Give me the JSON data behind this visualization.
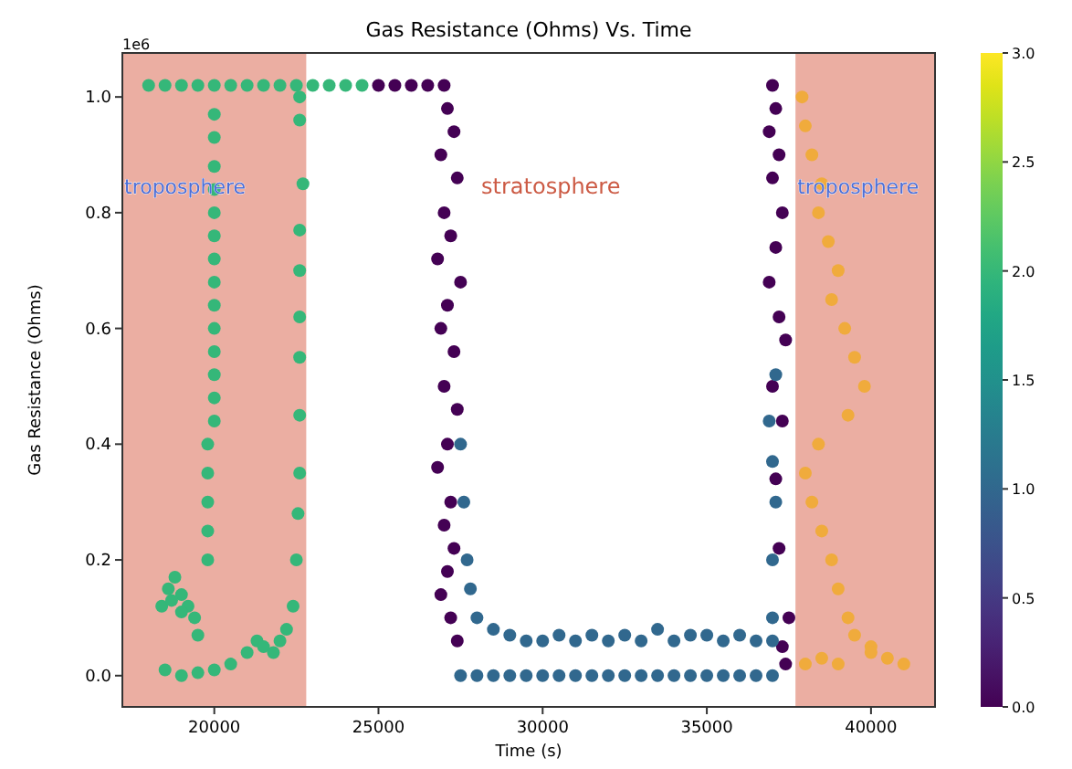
{
  "chart_data": {
    "type": "scatter",
    "title": "Gas Resistance (Ohms) Vs. Time",
    "xlabel": "Time (s)",
    "ylabel": "Gas Resistance (Ohms)",
    "xlim": [
      17200,
      41950
    ],
    "xticks": [
      20000,
      25000,
      30000,
      35000,
      40000
    ],
    "ylim": [
      -0.054,
      1.076
    ],
    "yticks": [
      {
        "value": 0,
        "label": "0.0"
      },
      {
        "value": 0.2,
        "label": "0.2"
      },
      {
        "value": 0.4,
        "label": "0.4"
      },
      {
        "value": 0.6,
        "label": "0.6"
      },
      {
        "value": 0.8,
        "label": "0.8"
      },
      {
        "value": 1.0,
        "label": "1.0"
      }
    ],
    "clim": [
      0,
      3
    ],
    "cticks": [
      {
        "value": 0,
        "label": "0.0"
      },
      {
        "value": 0.5,
        "label": "0.5"
      },
      {
        "value": 1,
        "label": "1.0"
      },
      {
        "value": 1.5,
        "label": "1.5"
      },
      {
        "value": 2,
        "label": "2.0"
      },
      {
        "value": 2.5,
        "label": "2.5"
      },
      {
        "value": 3,
        "label": "3.0"
      }
    ],
    "grid": false,
    "marker": "circle",
    "bands": [
      {
        "axis": "x",
        "from": 17200,
        "to": 22800,
        "label": "troposphere",
        "color": "#e9a598"
      },
      {
        "axis": "x",
        "from": 37700,
        "to": 41950,
        "label": "troposphere",
        "color": "#e9a598"
      }
    ],
    "annotations": [
      "1e6",
      "stratosphere"
    ],
    "series": [
      {
        "x": [
          18000,
          18500,
          19000,
          19500,
          20000,
          20500,
          21000,
          21500,
          22000,
          22500,
          23000,
          23500,
          24000,
          24500,
          20000,
          20000,
          20000,
          20000,
          20000,
          20000,
          20000,
          20000,
          20000,
          20000,
          20000,
          20000,
          20000,
          20000,
          19800,
          19800,
          19800,
          19800,
          19800,
          18400,
          18600,
          18800,
          19000,
          19200,
          19400,
          19500,
          19000,
          18700,
          18500,
          19000,
          19500,
          20000,
          20500,
          21000,
          21300,
          21500,
          21800,
          22000,
          22200,
          22400,
          22500,
          22550,
          22600,
          22600,
          22600,
          22600,
          22600,
          22600,
          22600,
          22600,
          22700
        ],
        "values": [
          1.02,
          1.02,
          1.02,
          1.02,
          1.02,
          1.02,
          1.02,
          1.02,
          1.02,
          1.02,
          1.02,
          1.02,
          1.02,
          1.02,
          0.97,
          0.93,
          0.88,
          0.84,
          0.8,
          0.76,
          0.72,
          0.68,
          0.64,
          0.6,
          0.56,
          0.52,
          0.48,
          0.44,
          0.4,
          0.35,
          0.3,
          0.25,
          0.2,
          0.12,
          0.15,
          0.17,
          0.14,
          0.12,
          0.1,
          0.07,
          0.11,
          0.13,
          0.01,
          0,
          0.005,
          0.01,
          0.02,
          0.04,
          0.06,
          0.05,
          0.04,
          0.06,
          0.08,
          0.12,
          0.2,
          0.28,
          0.35,
          0.45,
          0.55,
          0.62,
          0.7,
          0.77,
          0.96,
          1.0,
          0.85
        ],
        "cvalues": [
          2,
          2,
          2,
          2,
          2,
          2,
          2,
          2,
          2,
          2,
          2,
          2,
          2,
          2,
          2,
          2,
          2,
          2,
          2,
          2,
          2,
          2,
          2,
          2,
          2,
          2,
          2,
          2,
          2,
          2,
          2,
          2,
          2,
          2,
          2,
          2,
          2,
          2,
          2,
          2,
          2,
          2,
          2,
          2,
          2,
          2,
          2,
          2,
          2,
          2,
          2,
          2,
          2,
          2,
          2,
          2,
          2,
          2,
          2,
          2,
          2,
          2,
          2,
          2,
          2
        ]
      },
      {
        "x": [
          25000,
          25500,
          26000,
          26500,
          27000,
          27100,
          27300,
          26900,
          27400,
          27000,
          27200,
          26800,
          27500,
          27100,
          26900,
          27300,
          27000,
          27400,
          27100,
          26800,
          27200,
          27000,
          27300,
          27100,
          26900,
          27200,
          27400,
          37000,
          37100,
          36900,
          37200,
          37000,
          37300,
          37100,
          36900,
          37200,
          37400,
          37000,
          37300,
          37100,
          37200,
          37500,
          37300,
          37400
        ],
        "values": [
          1.02,
          1.02,
          1.02,
          1.02,
          1.02,
          0.98,
          0.94,
          0.9,
          0.86,
          0.8,
          0.76,
          0.72,
          0.68,
          0.64,
          0.6,
          0.56,
          0.5,
          0.46,
          0.4,
          0.36,
          0.3,
          0.26,
          0.22,
          0.18,
          0.14,
          0.1,
          0.06,
          1.02,
          0.98,
          0.94,
          0.9,
          0.86,
          0.8,
          0.74,
          0.68,
          0.62,
          0.58,
          0.5,
          0.44,
          0.34,
          0.22,
          0.1,
          0.05,
          0.02
        ],
        "cvalues": [
          0,
          0,
          0,
          0,
          0,
          0,
          0,
          0,
          0,
          0,
          0,
          0,
          0,
          0,
          0,
          0,
          0,
          0,
          0,
          0,
          0,
          0,
          0,
          0,
          0,
          0,
          0,
          0,
          0,
          0,
          0,
          0,
          0,
          0,
          0,
          0,
          0,
          0,
          0,
          0,
          0,
          0,
          0,
          0
        ]
      },
      {
        "x": [
          27500,
          28000,
          28500,
          29000,
          29500,
          30000,
          30500,
          31000,
          31500,
          32000,
          32500,
          33000,
          33500,
          34000,
          34500,
          35000,
          35500,
          36000,
          36500,
          37000,
          27500,
          27600,
          27700,
          27800,
          28000,
          28500,
          29000,
          29500,
          30000,
          30500,
          31000,
          31500,
          32000,
          32500,
          33000,
          33500,
          34000,
          34500,
          35000,
          35500,
          36000,
          36500,
          37000,
          37000,
          37000,
          37100,
          37000,
          36900,
          37100
        ],
        "values": [
          0,
          0,
          0,
          0,
          0,
          0,
          0,
          0,
          0,
          0,
          0,
          0,
          0,
          0,
          0,
          0,
          0,
          0,
          0,
          0,
          0.4,
          0.3,
          0.2,
          0.15,
          0.1,
          0.08,
          0.07,
          0.06,
          0.06,
          0.07,
          0.06,
          0.07,
          0.06,
          0.07,
          0.06,
          0.08,
          0.06,
          0.07,
          0.07,
          0.06,
          0.07,
          0.06,
          0.06,
          0.1,
          0.2,
          0.3,
          0.37,
          0.44,
          0.52
        ],
        "cvalues": [
          1,
          1,
          1,
          1,
          1,
          1,
          1,
          1,
          1,
          1,
          1,
          1,
          1,
          1,
          1,
          1,
          1,
          1,
          1,
          1,
          1,
          1,
          1,
          1,
          1,
          1,
          1,
          1,
          1,
          1,
          1,
          1,
          1,
          1,
          1,
          1,
          1,
          1,
          1,
          1,
          1,
          1,
          1,
          1,
          1,
          1,
          1,
          1,
          1
        ]
      },
      {
        "color": "#f0ab3c",
        "x": [
          37900,
          38000,
          38200,
          38500,
          38400,
          38700,
          39000,
          38800,
          39200,
          39500,
          39800,
          39300,
          38400,
          38000,
          38200,
          38500,
          38800,
          39000,
          39300,
          39500,
          40000,
          40500,
          41000,
          38000,
          38500,
          39000,
          40000
        ],
        "values": [
          1.0,
          0.95,
          0.9,
          0.85,
          0.8,
          0.75,
          0.7,
          0.65,
          0.6,
          0.55,
          0.5,
          0.45,
          0.4,
          0.35,
          0.3,
          0.25,
          0.2,
          0.15,
          0.1,
          0.07,
          0.05,
          0.03,
          0.02,
          0.02,
          0.03,
          0.02,
          0.04
        ]
      }
    ]
  }
}
